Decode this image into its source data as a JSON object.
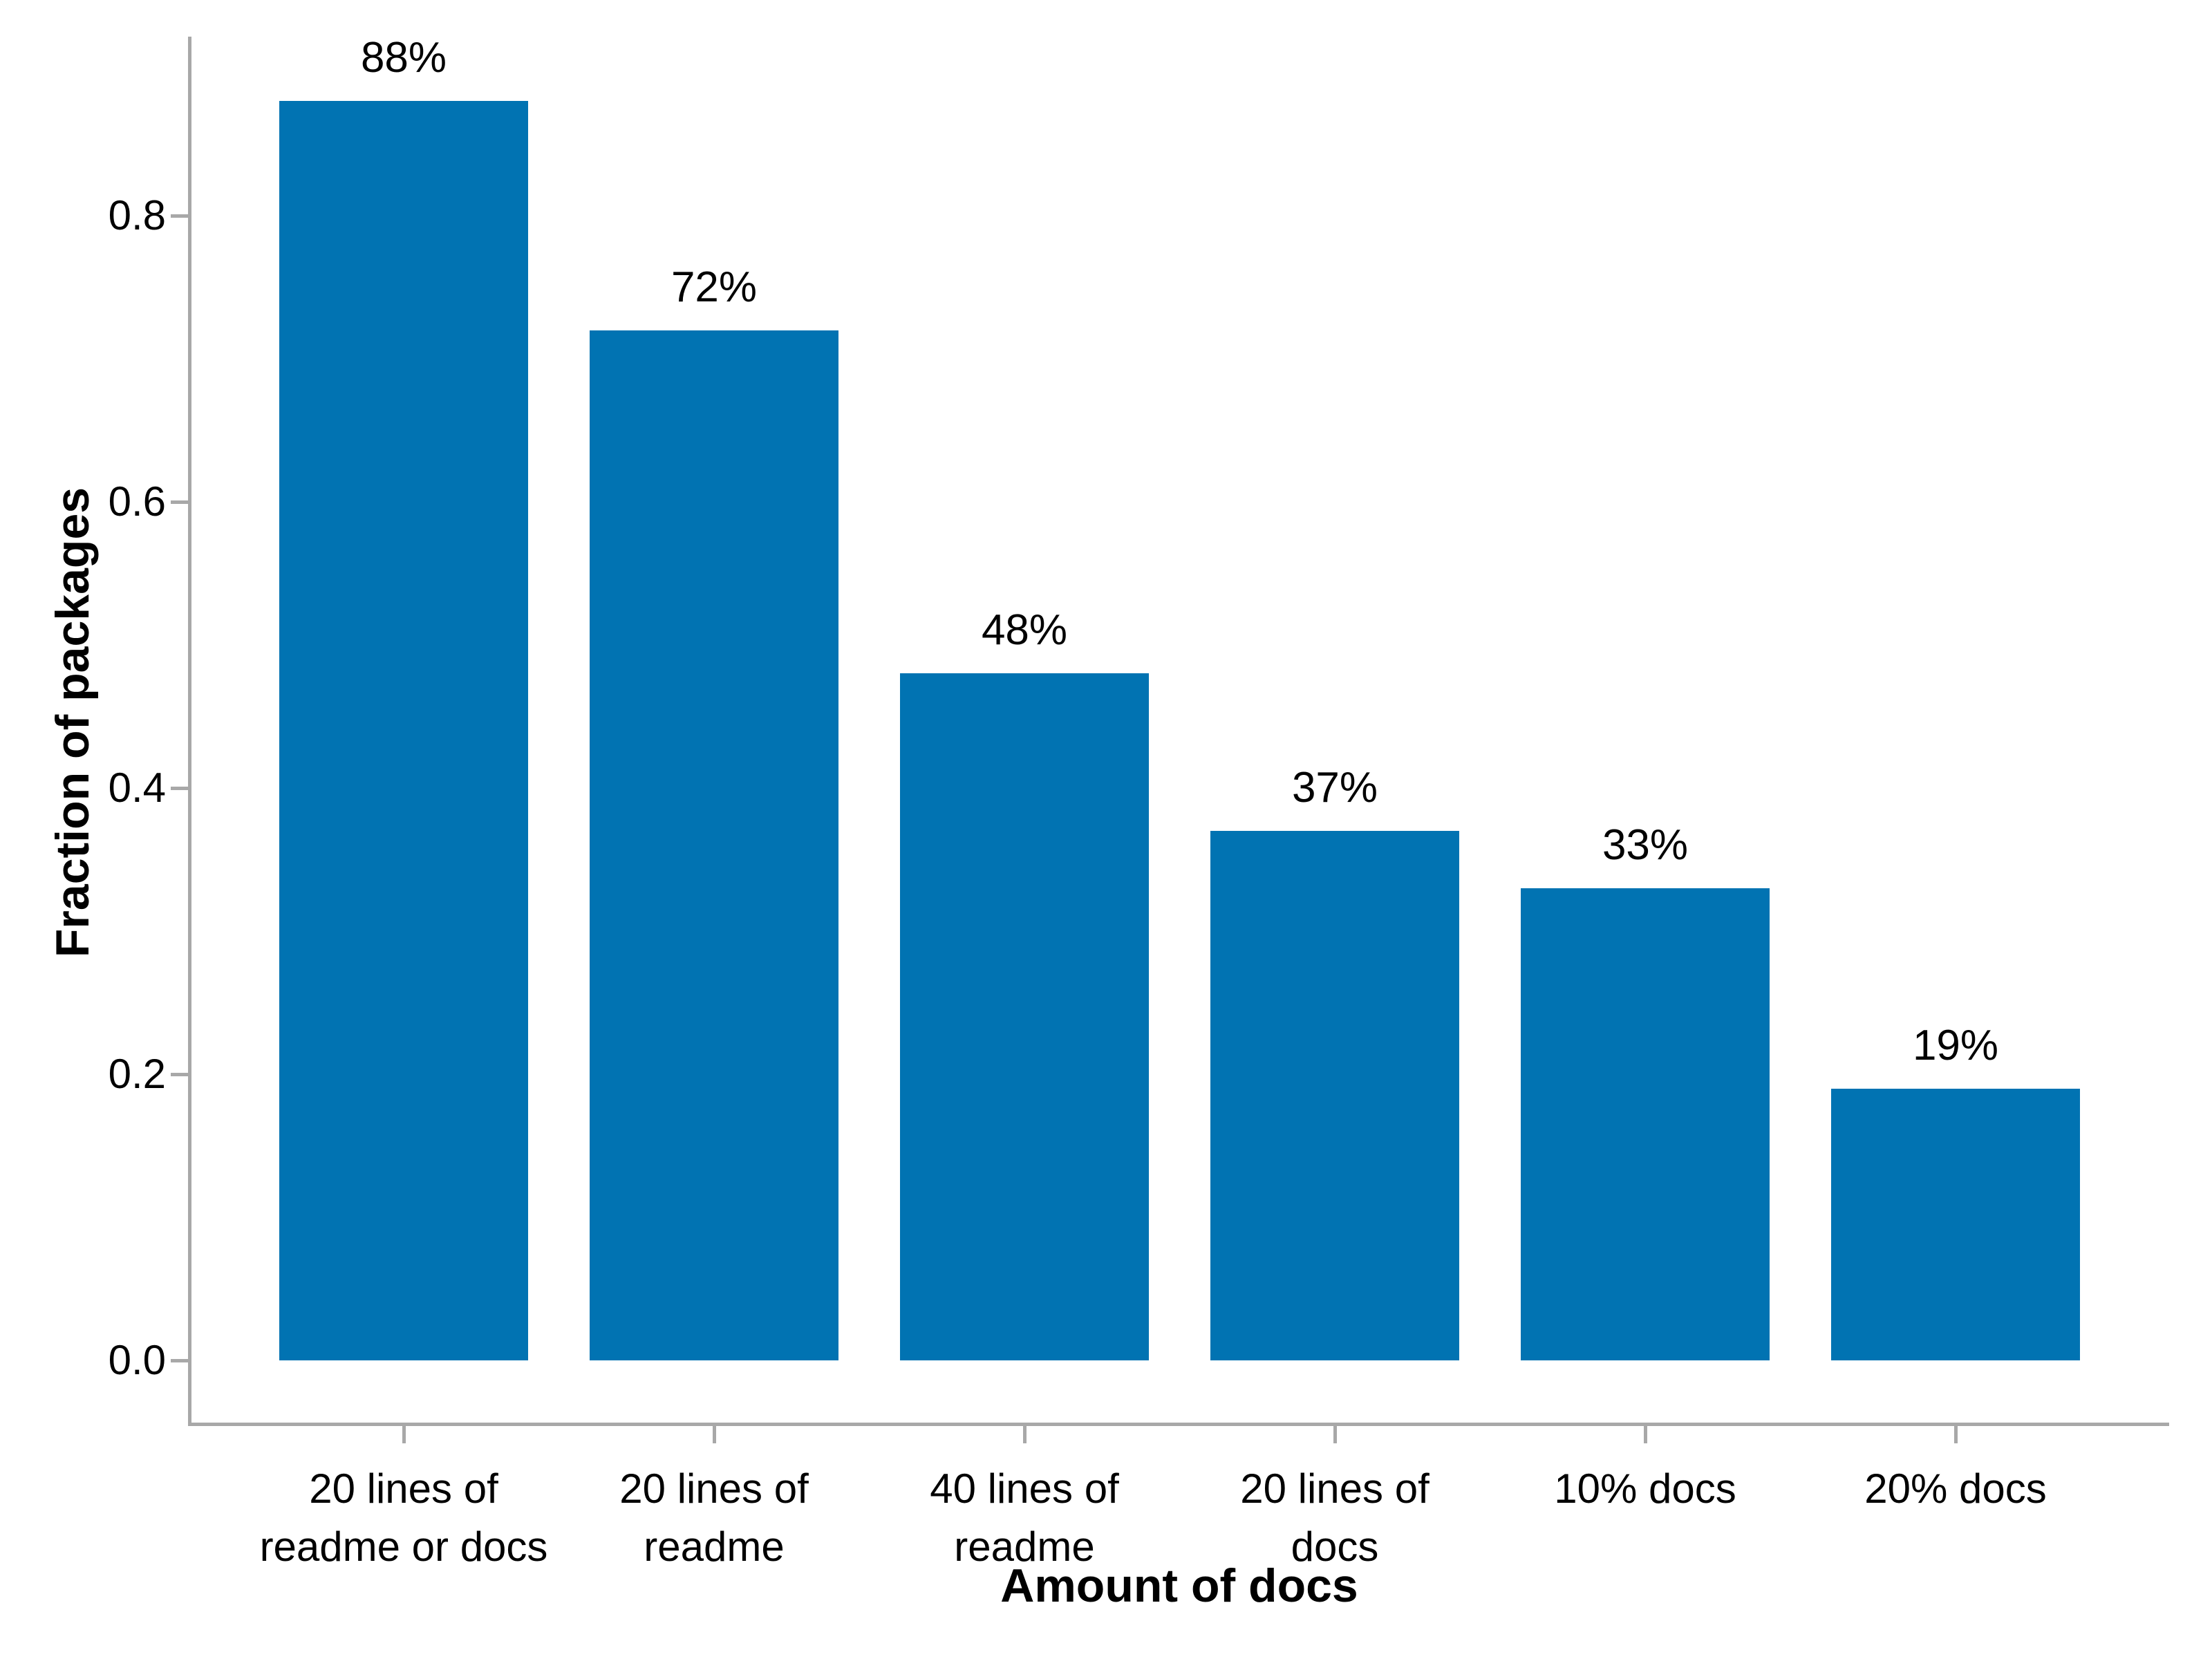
{
  "figure": {
    "background": "#ffffff"
  },
  "chart_data": {
    "type": "bar",
    "title": "",
    "xlabel": "Amount of docs",
    "ylabel": "Fraction of packages",
    "categories": [
      "20 lines of readme or docs",
      "20 lines of readme",
      "40 lines of readme",
      "20 lines of docs",
      "10% docs",
      "20% docs"
    ],
    "category_tick_lines": [
      [
        "20 lines of",
        "readme or docs"
      ],
      [
        "20 lines of",
        "readme"
      ],
      [
        "40 lines of",
        "readme"
      ],
      [
        "20 lines of",
        "docs"
      ],
      [
        "10% docs"
      ],
      [
        "20% docs"
      ]
    ],
    "values": [
      0.88,
      0.72,
      0.48,
      0.37,
      0.33,
      0.19
    ],
    "bar_value_labels": [
      "88%",
      "72%",
      "48%",
      "37%",
      "33%",
      "19%"
    ],
    "yticks": [
      0.0,
      0.2,
      0.4,
      0.6,
      0.8
    ],
    "ytick_labels": [
      "0.0",
      "0.2",
      "0.4",
      "0.6",
      "0.8"
    ],
    "ylim": [
      -0.044,
      0.925
    ],
    "grid": false,
    "legend": "none",
    "bar_color": "#0173b2",
    "spine_color": "#a8a8a8",
    "text_color": "#000000"
  }
}
